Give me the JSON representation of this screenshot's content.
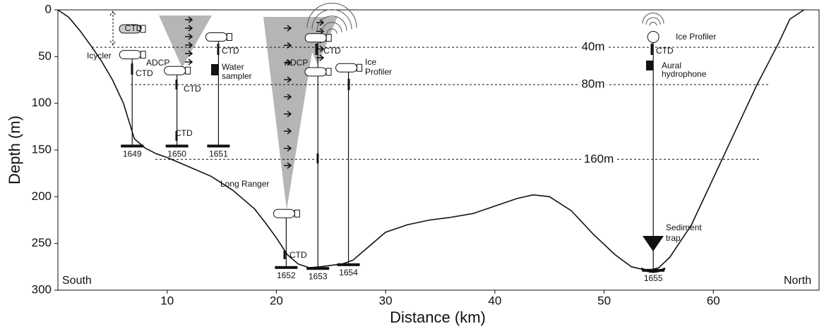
{
  "axes": {
    "x_label": "Distance (km)",
    "y_label": "Depth (m)",
    "xlim": [
      0,
      70
    ],
    "ylim": [
      0,
      300
    ],
    "xticks": [
      10,
      20,
      30,
      40,
      50,
      60
    ],
    "yticks": [
      0,
      50,
      100,
      150,
      200,
      250,
      300
    ]
  },
  "bathymetry": {
    "x": [
      0,
      1,
      2,
      3,
      4,
      5,
      6,
      7,
      8,
      9,
      10,
      11,
      12,
      14,
      16,
      18,
      19,
      20,
      21,
      22,
      23,
      24,
      26,
      27,
      28,
      29,
      30,
      32,
      34,
      36,
      38,
      40,
      42,
      43.5,
      45,
      47,
      49,
      51,
      52.5,
      54,
      55,
      56,
      58,
      60,
      62,
      64,
      66,
      67,
      68.3
    ],
    "depth": [
      0,
      8,
      22,
      38,
      55,
      75,
      100,
      138,
      148,
      154,
      158,
      163,
      168,
      178,
      193,
      213,
      228,
      244,
      262,
      272,
      276,
      275,
      272,
      268,
      258,
      248,
      238,
      230,
      225,
      222,
      218,
      210,
      202,
      198,
      200,
      215,
      240,
      262,
      275,
      279,
      276,
      265,
      230,
      180,
      130,
      80,
      35,
      10,
      0
    ]
  },
  "depth_lines": [
    {
      "depth": 40,
      "label": "40m"
    },
    {
      "depth": 80,
      "label": "80m"
    },
    {
      "depth": 160,
      "label": "160m"
    }
  ],
  "moorings": [
    {
      "id": "1649",
      "x": 6.8,
      "top": 48,
      "bottom": 145
    },
    {
      "id": "1650",
      "x": 10.9,
      "top": 65,
      "bottom": 145
    },
    {
      "id": "1651",
      "x": 14.7,
      "top": 29,
      "bottom": 145
    },
    {
      "id": "1652",
      "x": 20.9,
      "top": 218,
      "bottom": 275
    },
    {
      "id": "1653",
      "x": 23.8,
      "top": 30,
      "bottom": 276
    },
    {
      "id": "1654",
      "x": 26.6,
      "top": 62,
      "bottom": 272
    },
    {
      "id": "1655",
      "x": 54.5,
      "top": 29,
      "bottom": 278
    }
  ],
  "labels": [
    "CTD",
    "Icycler",
    "CTD",
    "ADCP",
    "CTD",
    "CTD",
    "CTD",
    "Water",
    "sampler",
    "ADCP",
    "CTD",
    "Ice",
    "Profiler",
    "Long Ranger",
    "CTD",
    "Ice Profiler",
    "CTD",
    "Aural",
    "hydrophone",
    "Sediment",
    "trap",
    "South",
    "North"
  ]
}
